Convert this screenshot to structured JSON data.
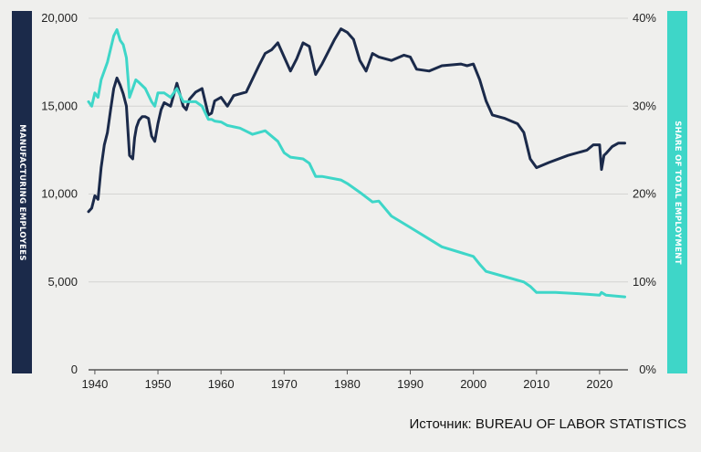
{
  "colors": {
    "employees_line": "#1b2a4a",
    "share_line": "#3ed6c8",
    "grid": "#d4d4d2",
    "background": "#efefed"
  },
  "source_text": "Источник: BUREAU OF LABOR STATISTICS",
  "chart_data": {
    "type": "line",
    "title": "",
    "xlabel": "",
    "ylabel": "MANUFACTURING EMPLOYEES",
    "y2label": "SHARE OF TOTAL EMPLOYMENT",
    "xlim": [
      1939,
      2024.5
    ],
    "ylim": [
      0,
      20000
    ],
    "y2lim": [
      0,
      40
    ],
    "grid": true,
    "x_ticks": [
      1940,
      1950,
      1960,
      1970,
      1980,
      1990,
      2000,
      2010,
      2020
    ],
    "x_tick_labels": [
      "1940",
      "1950",
      "1960",
      "1970",
      "1980",
      "1990",
      "2000",
      "2010",
      "2020"
    ],
    "y_ticks": [
      0,
      5000,
      10000,
      15000,
      20000
    ],
    "y_tick_labels": [
      "0",
      "5,000",
      "10,000",
      "15,000",
      "20,000"
    ],
    "y2_ticks": [
      0,
      10,
      20,
      30,
      40
    ],
    "y2_tick_labels": [
      "0%",
      "10%",
      "20%",
      "30%",
      "40%"
    ],
    "series": [
      {
        "axis": "left",
        "color": "#1b2a4a",
        "x": [
          1939.0,
          1939.5,
          1940.0,
          1940.5,
          1941.0,
          1941.5,
          1942.0,
          1942.5,
          1943.0,
          1943.5,
          1944.0,
          1944.5,
          1945.0,
          1945.5,
          1946.0,
          1946.3,
          1946.6,
          1947.0,
          1947.5,
          1948.0,
          1948.5,
          1949.0,
          1949.5,
          1950.0,
          1950.5,
          1951.0,
          1952.0,
          1953.0,
          1954.0,
          1954.5,
          1955.0,
          1956.0,
          1957.0,
          1958.0,
          1958.5,
          1959.0,
          1960.0,
          1961.0,
          1962.0,
          1964.0,
          1966.0,
          1967.0,
          1968.0,
          1969.0,
          1970.0,
          1971.0,
          1972.0,
          1973.0,
          1974.0,
          1975.0,
          1976.0,
          1978.0,
          1979.0,
          1980.0,
          1981.0,
          1982.0,
          1983.0,
          1984.0,
          1985.0,
          1987.0,
          1989.0,
          1990.0,
          1991.0,
          1993.0,
          1995.0,
          1998.0,
          1999.0,
          2000.0,
          2001.0,
          2002.0,
          2003.0,
          2005.0,
          2007.0,
          2008.0,
          2009.0,
          2010.0,
          2012.0,
          2015.0,
          2018.0,
          2019.0,
          2020.0,
          2020.3,
          2020.7,
          2021.0,
          2022.0,
          2023.0,
          2024.0
        ],
        "values": [
          9000,
          9200,
          9900,
          9700,
          11500,
          12800,
          13500,
          14800,
          16000,
          16600,
          16200,
          15700,
          15000,
          12200,
          12000,
          13200,
          13800,
          14200,
          14400,
          14400,
          14300,
          13300,
          13000,
          14000,
          14800,
          15200,
          15000,
          16300,
          15000,
          14800,
          15400,
          15800,
          16000,
          14500,
          14600,
          15300,
          15500,
          15000,
          15600,
          15800,
          17300,
          18000,
          18200,
          18600,
          17800,
          17000,
          17700,
          18600,
          18400,
          16800,
          17400,
          18800,
          19400,
          19200,
          18800,
          17600,
          17000,
          18000,
          17800,
          17600,
          17900,
          17800,
          17100,
          17000,
          17300,
          17400,
          17300,
          17400,
          16500,
          15300,
          14500,
          14300,
          14000,
          13500,
          12000,
          11500,
          11800,
          12200,
          12500,
          12800,
          12800,
          11400,
          12200,
          12300,
          12700,
          12900,
          12900
        ]
      },
      {
        "axis": "right",
        "color": "#3ed6c8",
        "x": [
          1939.0,
          1939.5,
          1940.0,
          1940.5,
          1941.0,
          1942.0,
          1943.0,
          1943.5,
          1944.0,
          1944.5,
          1945.0,
          1945.5,
          1946.0,
          1946.5,
          1947.0,
          1948.0,
          1949.0,
          1949.5,
          1950.0,
          1951.0,
          1952.0,
          1953.0,
          1954.0,
          1955.0,
          1956.0,
          1957.0,
          1958.0,
          1958.5,
          1959.0,
          1960.0,
          1961.0,
          1963.0,
          1965.0,
          1967.0,
          1969.0,
          1970.0,
          1971.0,
          1973.0,
          1974.0,
          1975.0,
          1976.0,
          1979.0,
          1980.0,
          1982.0,
          1984.0,
          1985.0,
          1987.0,
          1990.0,
          1995.0,
          2000.0,
          2001.0,
          2002.0,
          2005.0,
          2008.0,
          2009.0,
          2010.0,
          2013.0,
          2018.0,
          2020.0,
          2020.3,
          2021.0,
          2024.0
        ],
        "values": [
          30.5,
          30.0,
          31.5,
          31.0,
          33.0,
          35.0,
          38.0,
          38.7,
          37.5,
          37.0,
          35.5,
          31.0,
          32.0,
          33.0,
          32.7,
          32.0,
          30.5,
          30.0,
          31.5,
          31.5,
          31.0,
          32.0,
          30.5,
          30.5,
          30.5,
          30.0,
          28.5,
          28.5,
          28.3,
          28.2,
          27.8,
          27.5,
          26.8,
          27.2,
          26.0,
          24.7,
          24.2,
          24.0,
          23.5,
          22.0,
          22.0,
          21.6,
          21.2,
          20.2,
          19.1,
          19.2,
          17.5,
          16.2,
          14.0,
          12.9,
          12.0,
          11.2,
          10.6,
          10.0,
          9.5,
          8.8,
          8.8,
          8.6,
          8.5,
          8.8,
          8.5,
          8.3
        ]
      }
    ]
  }
}
